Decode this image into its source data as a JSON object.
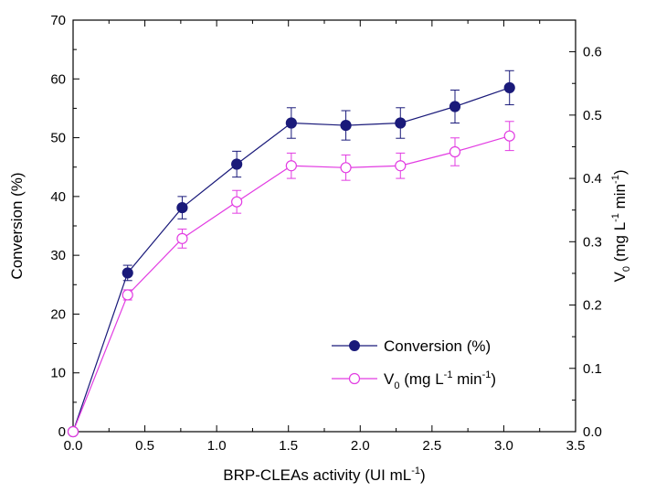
{
  "chart_data": {
    "type": "line",
    "x": [
      0.0,
      0.38,
      0.76,
      1.14,
      1.52,
      1.9,
      2.28,
      2.66,
      3.04
    ],
    "xlabel": {
      "main": "BRP-CLEAs activity (UI mL",
      "sup": "-1",
      "end": ")"
    },
    "ylabel_left": "Conversion (%)",
    "ylabel_right": {
      "v": "V",
      "sub": "0",
      "mid": " (mg L",
      "sup1": "-1",
      "mid2": " min",
      "sup2": "-1",
      "end": ")"
    },
    "xlim": [
      0.0,
      3.5
    ],
    "ylim_left": [
      0,
      70
    ],
    "ylim_right": [
      0.0,
      0.65
    ],
    "x_ticks": [
      "0.0",
      "0.5",
      "1.0",
      "1.5",
      "2.0",
      "2.5",
      "3.0",
      "3.5"
    ],
    "y_left_ticks": [
      "0",
      "10",
      "20",
      "30",
      "40",
      "50",
      "60",
      "70"
    ],
    "y_right_ticks": [
      "0.0",
      "0.1",
      "0.2",
      "0.3",
      "0.4",
      "0.5",
      "0.6"
    ],
    "grid": false,
    "legend_position": "bottom-right",
    "series": [
      {
        "name": "Conversion (%)",
        "axis": "left",
        "color": "#1a1a7a",
        "marker": "filled-circle",
        "values": [
          0,
          27.0,
          38.1,
          45.5,
          52.5,
          52.1,
          52.5,
          55.3,
          58.5
        ],
        "errors": [
          0,
          1.3,
          1.9,
          2.2,
          2.6,
          2.5,
          2.6,
          2.8,
          2.9
        ]
      },
      {
        "name": {
          "v": "V",
          "sub": "0",
          "mid": " (mg L",
          "sup1": "-1",
          "mid2": " min",
          "sup2": "-1",
          "end": ")"
        },
        "axis": "right",
        "color": "#e23ce2",
        "marker": "open-circle",
        "values": [
          0,
          0.216,
          0.305,
          0.363,
          0.42,
          0.417,
          0.42,
          0.442,
          0.467
        ],
        "errors": [
          0,
          0.008,
          0.015,
          0.018,
          0.02,
          0.02,
          0.02,
          0.022,
          0.023
        ]
      }
    ]
  }
}
